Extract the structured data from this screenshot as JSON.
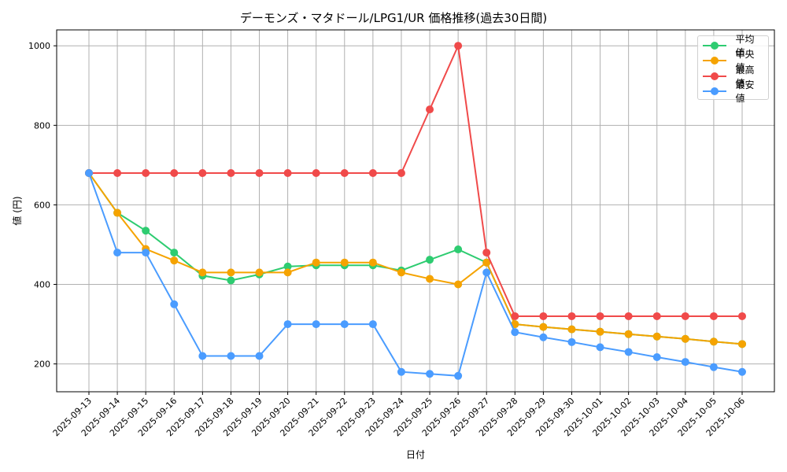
{
  "chart_data": {
    "type": "line",
    "title": "デーモンズ・マタドール/LPG1/UR 価格推移(過去30日間)",
    "xlabel": "日付",
    "ylabel": "値 (円)",
    "ylim": [
      130,
      1040
    ],
    "yticks": [
      200,
      400,
      600,
      800,
      1000
    ],
    "grid": true,
    "legend_position": "upper right",
    "x": [
      "2025-09-13",
      "2025-09-14",
      "2025-09-15",
      "2025-09-16",
      "2025-09-17",
      "2025-09-18",
      "2025-09-19",
      "2025-09-20",
      "2025-09-21",
      "2025-09-22",
      "2025-09-23",
      "2025-09-24",
      "2025-09-25",
      "2025-09-26",
      "2025-09-27",
      "2025-09-28",
      "2025-09-29",
      "2025-09-30",
      "2025-10-01",
      "2025-10-02",
      "2025-10-03",
      "2025-10-04",
      "2025-10-05",
      "2025-10-06"
    ],
    "series": [
      {
        "name": "平均値",
        "color": "#2ecc71",
        "values": [
          680,
          580,
          535,
          480,
          422,
          410,
          425,
          445,
          448,
          448,
          448,
          435,
          462,
          488,
          455,
          300,
          293,
          287,
          281,
          275,
          269,
          263,
          256,
          250
        ]
      },
      {
        "name": "中央値",
        "color": "#f5a300",
        "values": [
          680,
          580,
          489,
          460,
          430,
          430,
          430,
          430,
          455,
          455,
          455,
          430,
          414,
          400,
          455,
          300,
          293,
          287,
          281,
          275,
          269,
          263,
          256,
          250
        ]
      },
      {
        "name": "最高値",
        "color": "#f04a4a",
        "values": [
          680,
          680,
          680,
          680,
          680,
          680,
          680,
          680,
          680,
          680,
          680,
          680,
          840,
          1000,
          480,
          320,
          320,
          320,
          320,
          320,
          320,
          320,
          320,
          320
        ]
      },
      {
        "name": "最安値",
        "color": "#4a9cff",
        "values": [
          680,
          480,
          480,
          350,
          220,
          220,
          220,
          300,
          300,
          300,
          300,
          180,
          175,
          170,
          430,
          280,
          267,
          255,
          242,
          230,
          217,
          205,
          192,
          180
        ]
      }
    ]
  }
}
